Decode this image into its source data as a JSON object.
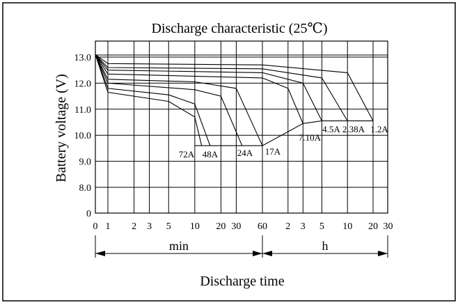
{
  "chart_data": {
    "type": "line",
    "title": "Discharge characteristic (25℃)",
    "ylabel": "Battery voltage (V)",
    "xlabel": "Discharge time",
    "ylim": [
      0,
      13.0
    ],
    "grid": true,
    "y_ticks": [
      "0",
      "8.0",
      "9.0",
      "10.0",
      "11.0",
      "12.0",
      "13.0"
    ],
    "min_ticks": [
      "0",
      "1",
      "2",
      "3",
      "5",
      "10",
      "20",
      "30"
    ],
    "boundary_tick": "60",
    "h_ticks": [
      "2",
      "3",
      "5",
      "10",
      "20",
      "30"
    ],
    "time_units": [
      "min",
      "h"
    ],
    "series": [
      {
        "name": "72A",
        "points": [
          [
            "0min",
            13.1
          ],
          [
            "1min",
            11.65
          ],
          [
            "5min",
            11.3
          ],
          [
            "10min",
            10.7
          ],
          [
            "12min",
            9.6
          ]
        ]
      },
      {
        "name": "48A",
        "points": [
          [
            "0min",
            13.1
          ],
          [
            "1min",
            11.8
          ],
          [
            "5min",
            11.55
          ],
          [
            "10min",
            11.2
          ],
          [
            "15min",
            9.6
          ]
        ]
      },
      {
        "name": "24A",
        "points": [
          [
            "0min",
            13.1
          ],
          [
            "1min",
            12.0
          ],
          [
            "10min",
            11.75
          ],
          [
            "20min",
            11.5
          ],
          [
            "35min",
            9.6
          ]
        ]
      },
      {
        "name": "17A",
        "points": [
          [
            "0min",
            13.1
          ],
          [
            "1min",
            12.15
          ],
          [
            "10min",
            12.05
          ],
          [
            "30min",
            11.8
          ],
          [
            "60min",
            9.6
          ]
        ]
      },
      {
        "name": "7.10A",
        "points": [
          [
            "0min",
            13.1
          ],
          [
            "1min",
            12.35
          ],
          [
            "60min",
            12.2
          ],
          [
            "2h",
            11.8
          ],
          [
            "3h",
            10.45
          ]
        ]
      },
      {
        "name": "4.5A",
        "points": [
          [
            "0min",
            13.1
          ],
          [
            "1min",
            12.5
          ],
          [
            "60min",
            12.4
          ],
          [
            "3h",
            12.0
          ],
          [
            "5h",
            10.55
          ]
        ]
      },
      {
        "name": "2.38A",
        "points": [
          [
            "0min",
            13.1
          ],
          [
            "1min",
            12.6
          ],
          [
            "60min",
            12.55
          ],
          [
            "5h",
            12.2
          ],
          [
            "10h",
            10.55
          ]
        ]
      },
      {
        "name": "1.2A",
        "points": [
          [
            "0min",
            13.1
          ],
          [
            "1min",
            12.75
          ],
          [
            "60min",
            12.7
          ],
          [
            "10h",
            12.4
          ],
          [
            "20h",
            10.55
          ]
        ]
      }
    ],
    "cutoff_line": {
      "points": [
        [
          "10min",
          9.6
        ],
        [
          "60min",
          9.6
        ],
        [
          "3h",
          10.45
        ],
        [
          "5h",
          10.55
        ],
        [
          "20h",
          10.55
        ]
      ]
    }
  }
}
